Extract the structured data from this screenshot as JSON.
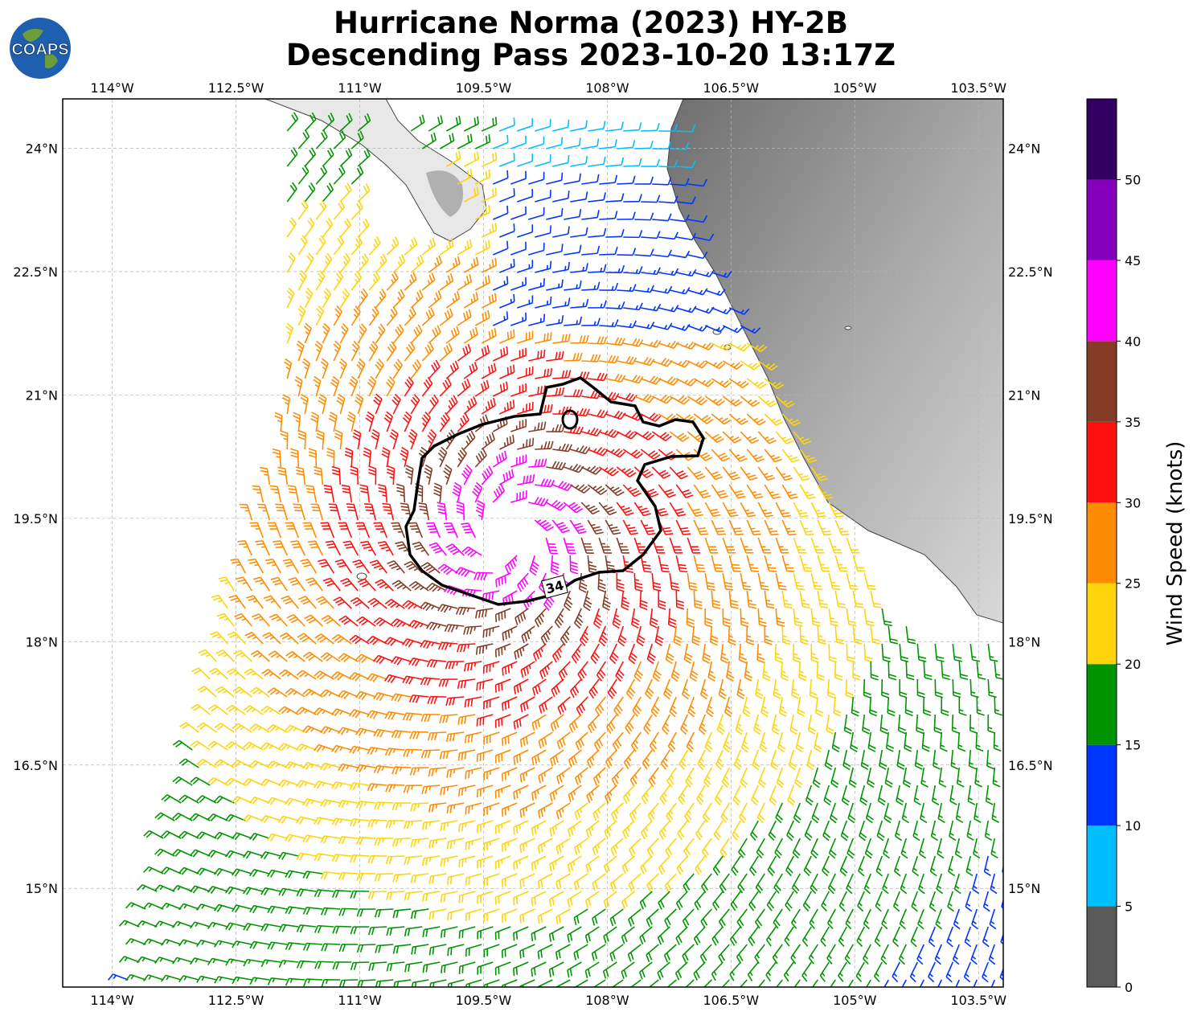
{
  "title": {
    "line1": "Hurricane Norma (2023) HY-2B",
    "line2": "Descending Pass 2023-10-20 13:17Z"
  },
  "logo": {
    "text": "COAPS"
  },
  "map": {
    "lon_ticks": [
      "114°W",
      "112.5°W",
      "111°W",
      "109.5°W",
      "108°W",
      "106.5°W",
      "105°W",
      "103.5°W"
    ],
    "lat_ticks": [
      "24°N",
      "22.5°N",
      "21°N",
      "19.5°N",
      "18°N",
      "16.5°N",
      "15°N"
    ],
    "lon_range": [
      -114.6,
      -103.2
    ],
    "lat_range": [
      13.8,
      24.6
    ],
    "storm_center": {
      "lon": -109.2,
      "lat": 19.3
    },
    "contour_label": "34",
    "contour_value_knots": 34,
    "land_color": "#8c8c8c",
    "grid": true
  },
  "colorbar": {
    "label": "Wind Speed (knots)",
    "ticks": [
      "0",
      "5",
      "10",
      "15",
      "20",
      "25",
      "30",
      "35",
      "40",
      "45",
      "50"
    ],
    "bins": [
      {
        "min": 0,
        "max": 5,
        "color": "#595959"
      },
      {
        "min": 5,
        "max": 10,
        "color": "#00bfff"
      },
      {
        "min": 10,
        "max": 15,
        "color": "#0034ff"
      },
      {
        "min": 15,
        "max": 20,
        "color": "#009500"
      },
      {
        "min": 20,
        "max": 25,
        "color": "#ffd40a"
      },
      {
        "min": 25,
        "max": 30,
        "color": "#ff8c00"
      },
      {
        "min": 30,
        "max": 35,
        "color": "#ff1010"
      },
      {
        "min": 35,
        "max": 40,
        "color": "#843c27"
      },
      {
        "min": 40,
        "max": 45,
        "color": "#ff00ff"
      },
      {
        "min": 45,
        "max": 50,
        "color": "#8400bd"
      },
      {
        "min": 50,
        "max": 55,
        "color": "#320062"
      }
    ]
  }
}
